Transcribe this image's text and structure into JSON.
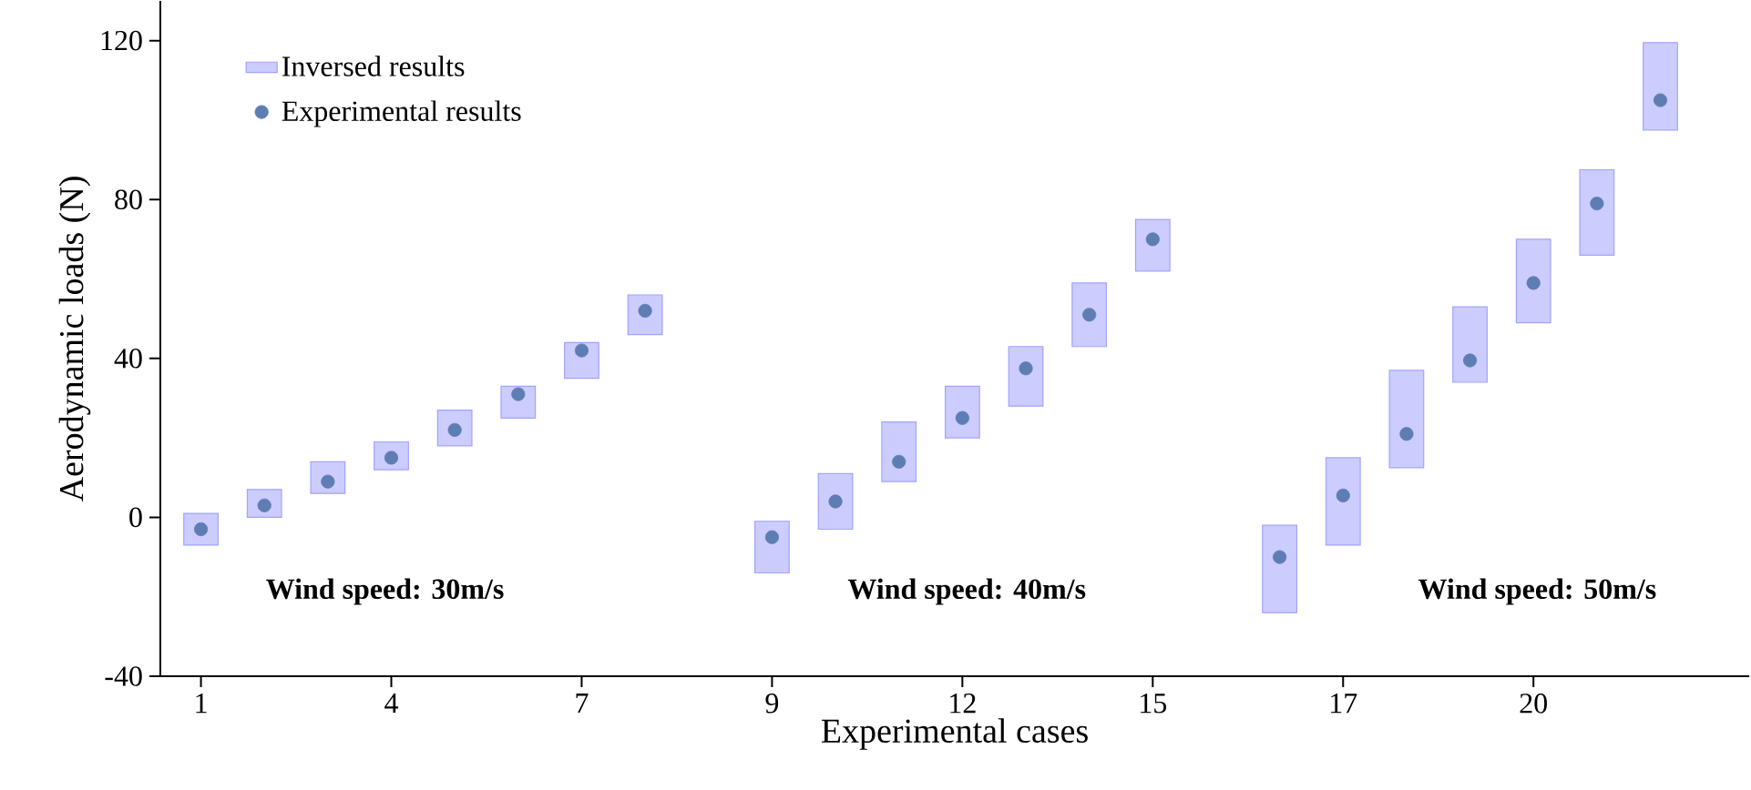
{
  "chart_data": {
    "type": "bar",
    "xlabel": "Experimental cases",
    "ylabel": "Aerodynamic loads (N)",
    "categories": [
      "1",
      null,
      null,
      "4",
      null,
      null,
      "7",
      null,
      null,
      "9",
      null,
      null,
      "12",
      null,
      null,
      "15",
      null,
      null,
      "17",
      null,
      null,
      "20",
      null,
      null
    ],
    "series": [
      {
        "name": "Inversed results",
        "color": "#ccccff",
        "base": [
          -7,
          0,
          6,
          12,
          18,
          25,
          35,
          46,
          null,
          -14,
          -3,
          9,
          20,
          28,
          43,
          62,
          null,
          -24,
          -7,
          12.5,
          34,
          49,
          66,
          97.5
        ],
        "values": [
          8,
          7,
          8,
          7,
          9,
          8,
          9,
          10,
          null,
          13,
          14,
          15,
          13,
          15,
          16,
          13,
          null,
          22,
          22,
          24.5,
          19,
          21,
          21.5,
          22
        ]
      },
      {
        "name": "Experimental results",
        "type": "scatter",
        "marker": "circle",
        "color": "#5e7db3",
        "values": [
          -3,
          3,
          9,
          15,
          22,
          31,
          42,
          52,
          null,
          -5,
          4,
          14,
          25,
          37.5,
          51,
          70,
          null,
          -10,
          5.5,
          21,
          39.5,
          59,
          79,
          105
        ]
      }
    ],
    "ylim": [
      -40,
      130
    ],
    "yticks": [
      -40,
      0,
      40,
      80,
      120
    ],
    "legend": "top left",
    "annotations": [
      "Wind speed: 30m/s",
      "Wind speed: 40m/s",
      "Wind speed: 50m/s"
    ]
  }
}
